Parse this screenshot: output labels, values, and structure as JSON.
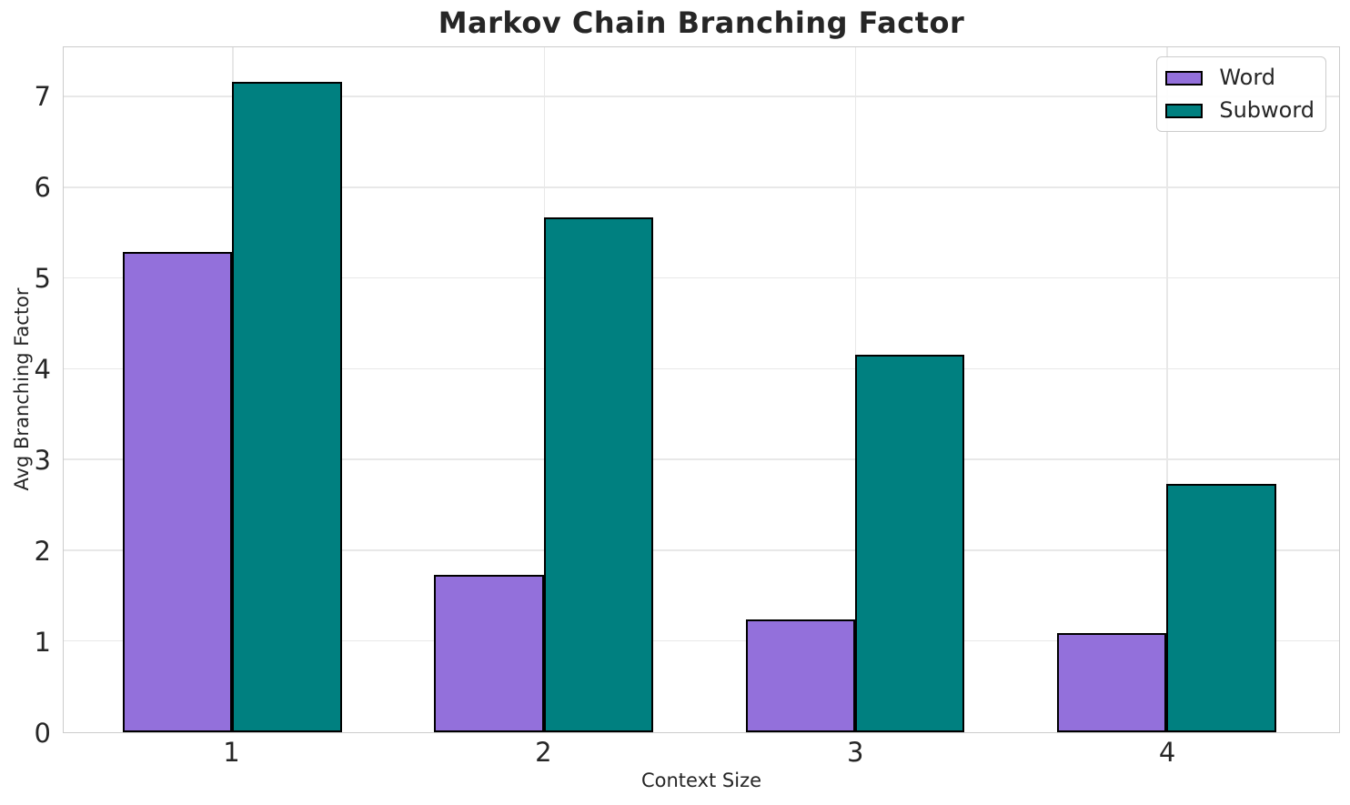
{
  "chart_data": {
    "type": "bar",
    "title": "Markov Chain Branching Factor",
    "xlabel": "Context Size",
    "ylabel": "Avg Branching Factor",
    "categories": [
      "1",
      "2",
      "3",
      "4"
    ],
    "series": [
      {
        "name": "Word",
        "color": "#9370DB",
        "values": [
          5.29,
          1.73,
          1.24,
          1.09
        ]
      },
      {
        "name": "Subword",
        "color": "#008080",
        "values": [
          7.17,
          5.68,
          4.16,
          2.74
        ]
      }
    ],
    "ylim": [
      0,
      7.55
    ],
    "yticks": [
      0,
      1,
      2,
      3,
      4,
      5,
      6,
      7
    ],
    "grid": true,
    "grid_color": "#e8e8e8",
    "spine_color": "#cccccc",
    "bar_edge_color": "#000000",
    "text_color": "#262626",
    "legend_position": "upper right"
  }
}
